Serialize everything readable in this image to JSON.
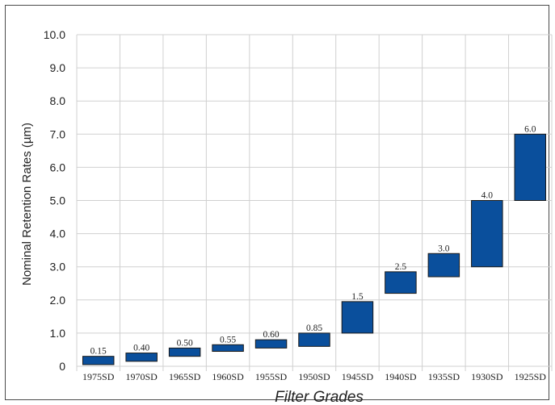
{
  "chart_data": {
    "type": "bar",
    "subtype": "floating-bar",
    "title": "",
    "xlabel": "Filter Grades",
    "ylabel": "Nominal Retention Rates (µm)",
    "ylim": [
      0,
      10
    ],
    "yticks": [
      "0",
      "1.0",
      "2.0",
      "3.0",
      "4.0",
      "5.0",
      "6.0",
      "7.0",
      "8.0",
      "9.0",
      "10.0"
    ],
    "grid": true,
    "legend": "none",
    "bar_color": "#0a4f9c",
    "categories": [
      "1975SD",
      "1970SD",
      "1965SD",
      "1960SD",
      "1955SD",
      "1950SD",
      "1945SD",
      "1940SD",
      "1935SD",
      "1930SD",
      "1925SD"
    ],
    "labels": [
      "0.15",
      "0.40",
      "0.50",
      "0.55",
      "0.60",
      "0.85",
      "1.5",
      "2.5",
      "3.0",
      "4.0",
      "6.0"
    ],
    "low": [
      0.05,
      0.15,
      0.3,
      0.45,
      0.55,
      0.6,
      1.0,
      2.2,
      2.7,
      3.0,
      5.0
    ],
    "high": [
      0.3,
      0.4,
      0.55,
      0.65,
      0.8,
      1.0,
      1.95,
      2.85,
      3.4,
      5.0,
      7.0
    ]
  }
}
